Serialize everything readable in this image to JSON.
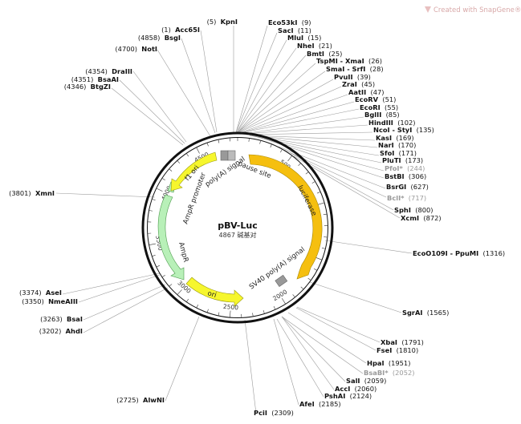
{
  "watermark": "Created with SnapGene®",
  "plasmid": {
    "name": "pBV-Luc",
    "length_text": "4867 碱基对",
    "length": 4867
  },
  "ticks": [
    "500",
    "1000",
    "1500",
    "2000",
    "2500",
    "3000",
    "3500",
    "4000",
    "4500"
  ],
  "features": [
    {
      "name": "luciferase",
      "color": "#f5bf0f"
    },
    {
      "name": "ori",
      "color": "#f6f62d"
    },
    {
      "name": "AmpR",
      "color": "#b8f0b8"
    },
    {
      "name": "AmpR promoter",
      "color": "#b8f0b8"
    },
    {
      "name": "f1 ori",
      "color": "#f6f62d"
    },
    {
      "name": "poly(A) signal",
      "color": "#999999"
    },
    {
      "name": "pause site",
      "color": "#999999"
    },
    {
      "name": "SV40 poly(A) signal",
      "color": "#999999"
    }
  ],
  "sites": [
    {
      "en": "KpnI",
      "pos": "(5)",
      "side": "left",
      "gray": false
    },
    {
      "en": "Acc65I",
      "pos": "(1)",
      "side": "left",
      "gray": false
    },
    {
      "en": "BsgI",
      "pos": "(4858)",
      "side": "left",
      "gray": false
    },
    {
      "en": "NotI",
      "pos": "(4700)",
      "side": "left",
      "gray": false
    },
    {
      "en": "DraIII",
      "pos": "(4354)",
      "side": "left",
      "gray": false
    },
    {
      "en": "BsaAI",
      "pos": "(4351)",
      "side": "left",
      "gray": false
    },
    {
      "en": "BtgZI",
      "pos": "(4346)",
      "side": "left",
      "gray": false
    },
    {
      "en": "XmnI",
      "pos": "(3801)",
      "side": "left",
      "gray": false
    },
    {
      "en": "AseI",
      "pos": "(3374)",
      "side": "left",
      "gray": false
    },
    {
      "en": "NmeAIII",
      "pos": "(3350)",
      "side": "left",
      "gray": false
    },
    {
      "en": "BsaI",
      "pos": "(3263)",
      "side": "left",
      "gray": false
    },
    {
      "en": "AhdI",
      "pos": "(3202)",
      "side": "left",
      "gray": false
    },
    {
      "en": "AlwNI",
      "pos": "(2725)",
      "side": "left",
      "gray": false
    },
    {
      "en": "PciI",
      "pos": "(2309)",
      "side": "right",
      "gray": false
    },
    {
      "en": "Eco53kI",
      "pos": "(9)",
      "side": "right",
      "gray": false
    },
    {
      "en": "SacI",
      "pos": "(11)",
      "side": "right",
      "gray": false
    },
    {
      "en": "MluI",
      "pos": "(15)",
      "side": "right",
      "gray": false
    },
    {
      "en": "NheI",
      "pos": "(21)",
      "side": "right",
      "gray": false
    },
    {
      "en": "BmtI",
      "pos": "(25)",
      "side": "right",
      "gray": false
    },
    {
      "en": "TspMI - XmaI",
      "pos": "(26)",
      "side": "right",
      "gray": false
    },
    {
      "en": "SmaI - SrfI",
      "pos": "(28)",
      "side": "right",
      "gray": false
    },
    {
      "en": "PvuII",
      "pos": "(39)",
      "side": "right",
      "gray": false
    },
    {
      "en": "ZraI",
      "pos": "(45)",
      "side": "right",
      "gray": false
    },
    {
      "en": "AatII",
      "pos": "(47)",
      "side": "right",
      "gray": false
    },
    {
      "en": "EcoRV",
      "pos": "(51)",
      "side": "right",
      "gray": false
    },
    {
      "en": "EcoRI",
      "pos": "(55)",
      "side": "right",
      "gray": false
    },
    {
      "en": "BglII",
      "pos": "(85)",
      "side": "right",
      "gray": false
    },
    {
      "en": "HindIII",
      "pos": "(102)",
      "side": "right",
      "gray": false
    },
    {
      "en": "NcoI - StyI",
      "pos": "(135)",
      "side": "right",
      "gray": false
    },
    {
      "en": "KasI",
      "pos": "(169)",
      "side": "right",
      "gray": false
    },
    {
      "en": "NarI",
      "pos": "(170)",
      "side": "right",
      "gray": false
    },
    {
      "en": "SfoI",
      "pos": "(171)",
      "side": "right",
      "gray": false
    },
    {
      "en": "PluTI",
      "pos": "(173)",
      "side": "right",
      "gray": false
    },
    {
      "en": "PfoI*",
      "pos": "(244)",
      "side": "right",
      "gray": true
    },
    {
      "en": "BstBI",
      "pos": "(306)",
      "side": "right",
      "gray": false
    },
    {
      "en": "BsrGI",
      "pos": "(627)",
      "side": "right",
      "gray": false
    },
    {
      "en": "BclI*",
      "pos": "(717)",
      "side": "right",
      "gray": true
    },
    {
      "en": "SphI",
      "pos": "(800)",
      "side": "right",
      "gray": false
    },
    {
      "en": "XcmI",
      "pos": "(872)",
      "side": "right",
      "gray": false
    },
    {
      "en": "EcoO109I - PpuMI",
      "pos": "(1316)",
      "side": "right",
      "gray": false
    },
    {
      "en": "SgrAI",
      "pos": "(1565)",
      "side": "right",
      "gray": false
    },
    {
      "en": "XbaI",
      "pos": "(1791)",
      "side": "right",
      "gray": false
    },
    {
      "en": "FseI",
      "pos": "(1810)",
      "side": "right",
      "gray": false
    },
    {
      "en": "HpaI",
      "pos": "(1951)",
      "side": "right",
      "gray": false
    },
    {
      "en": "BsaBI*",
      "pos": "(2052)",
      "side": "right",
      "gray": true
    },
    {
      "en": "SalI",
      "pos": "(2059)",
      "side": "right",
      "gray": false
    },
    {
      "en": "AccI",
      "pos": "(2060)",
      "side": "right",
      "gray": false
    },
    {
      "en": "PshAI",
      "pos": "(2124)",
      "side": "right",
      "gray": false
    },
    {
      "en": "AfeI",
      "pos": "(2185)",
      "side": "right",
      "gray": false
    }
  ]
}
